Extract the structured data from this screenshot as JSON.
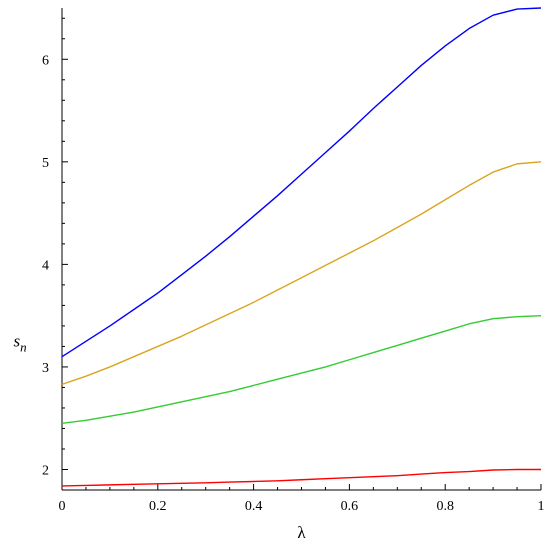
{
  "chart_data": {
    "type": "line",
    "xlabel": "λ",
    "ylabel": "s",
    "ylabel_subscript": "n",
    "xlim": [
      0,
      1
    ],
    "ylim": [
      1.8,
      6.5
    ],
    "x_ticks": [
      0,
      0.2,
      0.4,
      0.6,
      0.8,
      1
    ],
    "x_tick_labels": [
      "0",
      "0.2",
      "0.4",
      "0.6",
      "0.8",
      "1"
    ],
    "y_ticks": [
      2,
      3,
      4,
      5,
      6
    ],
    "y_tick_labels": [
      "2",
      "3",
      "4",
      "5",
      "6"
    ],
    "grid": false,
    "legend": "none",
    "series": [
      {
        "color": "#0000ff",
        "x": [
          0,
          0.05,
          0.1,
          0.15,
          0.2,
          0.25,
          0.3,
          0.35,
          0.4,
          0.45,
          0.5,
          0.55,
          0.6,
          0.65,
          0.7,
          0.75,
          0.8,
          0.85,
          0.9,
          0.95,
          1
        ],
        "y": [
          3.1,
          3.25,
          3.4,
          3.56,
          3.72,
          3.9,
          4.08,
          4.27,
          4.47,
          4.67,
          4.88,
          5.09,
          5.3,
          5.52,
          5.73,
          5.94,
          6.13,
          6.3,
          6.43,
          6.49,
          6.5
        ]
      },
      {
        "color": "#daa520",
        "x": [
          0,
          0.05,
          0.1,
          0.15,
          0.2,
          0.25,
          0.3,
          0.35,
          0.4,
          0.45,
          0.5,
          0.55,
          0.6,
          0.65,
          0.7,
          0.75,
          0.8,
          0.85,
          0.9,
          0.95,
          1
        ],
        "y": [
          2.83,
          2.91,
          3.0,
          3.1,
          3.2,
          3.3,
          3.41,
          3.52,
          3.63,
          3.75,
          3.87,
          3.99,
          4.11,
          4.23,
          4.36,
          4.49,
          4.63,
          4.77,
          4.9,
          4.98,
          5.0
        ]
      },
      {
        "color": "#33cc33",
        "x": [
          0,
          0.05,
          0.1,
          0.15,
          0.2,
          0.25,
          0.3,
          0.35,
          0.4,
          0.45,
          0.5,
          0.55,
          0.6,
          0.65,
          0.7,
          0.75,
          0.8,
          0.85,
          0.9,
          0.95,
          1
        ],
        "y": [
          2.45,
          2.48,
          2.52,
          2.56,
          2.61,
          2.66,
          2.71,
          2.76,
          2.82,
          2.88,
          2.94,
          3.0,
          3.07,
          3.14,
          3.21,
          3.28,
          3.35,
          3.42,
          3.47,
          3.49,
          3.5
        ]
      },
      {
        "color": "#ff0000",
        "x": [
          0,
          0.05,
          0.1,
          0.15,
          0.2,
          0.25,
          0.3,
          0.35,
          0.4,
          0.45,
          0.5,
          0.55,
          0.6,
          0.65,
          0.7,
          0.75,
          0.8,
          0.85,
          0.9,
          0.95,
          1
        ],
        "y": [
          1.84,
          1.845,
          1.85,
          1.855,
          1.86,
          1.865,
          1.87,
          1.877,
          1.883,
          1.89,
          1.9,
          1.91,
          1.92,
          1.93,
          1.94,
          1.955,
          1.97,
          1.98,
          1.995,
          2.0,
          2.0
        ]
      }
    ]
  }
}
